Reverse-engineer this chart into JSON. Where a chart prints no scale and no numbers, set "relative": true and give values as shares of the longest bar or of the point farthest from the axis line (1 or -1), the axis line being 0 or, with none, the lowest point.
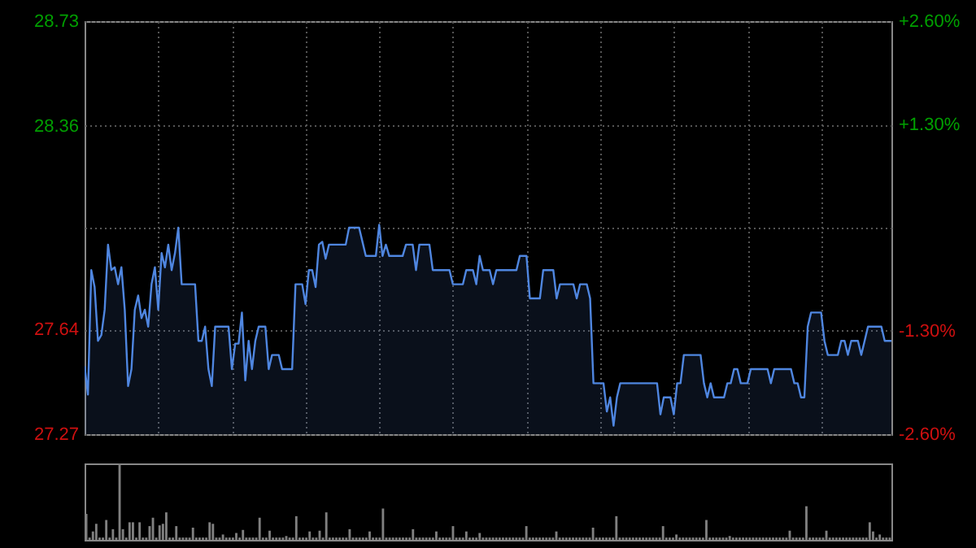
{
  "chart_data": [
    {
      "type": "area",
      "ylim": [
        27.27,
        28.73
      ],
      "categories": [
        null,
        null,
        null,
        null,
        null,
        null,
        null,
        null,
        null,
        null,
        null,
        null,
        null,
        null,
        null,
        null,
        null,
        null,
        null,
        null,
        null,
        null,
        null,
        null,
        null,
        null,
        null,
        null,
        null,
        null,
        null,
        null,
        null,
        null,
        null,
        null,
        null,
        null,
        null,
        null,
        null,
        null,
        null,
        null,
        null,
        null,
        null,
        null,
        null,
        null,
        null,
        null,
        null,
        null,
        null,
        null,
        null,
        null,
        null,
        null,
        null,
        null,
        null,
        null,
        null,
        null,
        null,
        null,
        null,
        null,
        null,
        null,
        null,
        null,
        null,
        null,
        null,
        null,
        null,
        null,
        null,
        null,
        null,
        null,
        null,
        null,
        null,
        null,
        null,
        null,
        null,
        null,
        null,
        null,
        null,
        null,
        null,
        null,
        null,
        null,
        null,
        null,
        null,
        null,
        null,
        null,
        null,
        null,
        null,
        null,
        null,
        null,
        null,
        null,
        null,
        null,
        null,
        null,
        null,
        null,
        null,
        null,
        null,
        null,
        null,
        null,
        null,
        null,
        null,
        null,
        null,
        null,
        null,
        null,
        null,
        null,
        null,
        null,
        null,
        null,
        null,
        null,
        null,
        null,
        null,
        null,
        null,
        null,
        null,
        null,
        null,
        null,
        null,
        null,
        null,
        null,
        null,
        null,
        null,
        null,
        null,
        null,
        null,
        null,
        null,
        null,
        null,
        null,
        null,
        null,
        null,
        null,
        null,
        null,
        null,
        null,
        null,
        null,
        null,
        null,
        null,
        null,
        null,
        null,
        null,
        null,
        null,
        null,
        null,
        null,
        null,
        null,
        null,
        null,
        null,
        null,
        null,
        null,
        null,
        null,
        null,
        null,
        null,
        null,
        null,
        null,
        null,
        null,
        null,
        null,
        null,
        null,
        null,
        null,
        null,
        null,
        null,
        null,
        null,
        null,
        null,
        null,
        null,
        null,
        null,
        null,
        null,
        null,
        null,
        null,
        null,
        null,
        null,
        null,
        null,
        null,
        null,
        null,
        null,
        null,
        null,
        null
      ],
      "yticks": [
        27.27,
        27.64,
        {
          "value": 28.0,
          "label": null
        },
        28.36,
        28.73
      ],
      "y2lim": [
        -2.6,
        2.6
      ],
      "y2ticks": [
        {
          "value": -2.6,
          "label": "-2.60%"
        },
        {
          "value": -1.3,
          "label": "-1.30%"
        },
        {
          "value": 1.3,
          "label": "+1.30%"
        },
        {
          "value": 2.6,
          "label": "+2.60%"
        }
      ],
      "grid": true,
      "series": [
        {
          "color": "#4f86e0",
          "values": [
            27.51,
            27.41,
            27.85,
            27.79,
            27.6,
            27.62,
            27.71,
            27.94,
            27.85,
            27.86,
            27.8,
            27.86,
            27.71,
            27.44,
            27.5,
            27.71,
            27.76,
            27.68,
            27.71,
            27.65,
            27.8,
            27.86,
            27.71,
            27.91,
            27.86,
            27.94,
            27.85,
            27.91,
            28.0,
            27.8,
            27.8,
            27.8,
            27.8,
            27.8,
            27.6,
            27.6,
            27.65,
            27.5,
            27.44,
            27.65,
            27.65,
            27.65,
            27.65,
            27.65,
            27.5,
            27.59,
            27.59,
            27.7,
            27.46,
            27.6,
            27.5,
            27.6,
            27.65,
            27.65,
            27.65,
            27.5,
            27.55,
            27.55,
            27.55,
            27.5,
            27.5,
            27.5,
            27.5,
            27.8,
            27.8,
            27.8,
            27.73,
            27.85,
            27.85,
            27.79,
            27.94,
            27.95,
            27.89,
            27.94,
            27.94,
            27.94,
            27.94,
            27.94,
            27.94,
            28.0,
            28.0,
            28.0,
            28.0,
            27.95,
            27.9,
            27.9,
            27.9,
            27.9,
            28.01,
            27.9,
            27.94,
            27.9,
            27.9,
            27.9,
            27.9,
            27.9,
            27.94,
            27.94,
            27.94,
            27.85,
            27.94,
            27.94,
            27.94,
            27.94,
            27.85,
            27.85,
            27.85,
            27.85,
            27.85,
            27.85,
            27.8,
            27.8,
            27.8,
            27.8,
            27.85,
            27.85,
            27.85,
            27.8,
            27.9,
            27.85,
            27.85,
            27.85,
            27.8,
            27.85,
            27.85,
            27.85,
            27.85,
            27.85,
            27.85,
            27.85,
            27.9,
            27.9,
            27.9,
            27.75,
            27.75,
            27.75,
            27.75,
            27.85,
            27.85,
            27.85,
            27.85,
            27.75,
            27.8,
            27.8,
            27.8,
            27.8,
            27.8,
            27.75,
            27.8,
            27.8,
            27.8,
            27.75,
            27.45,
            27.45,
            27.45,
            27.45,
            27.35,
            27.4,
            27.3,
            27.4,
            27.45,
            27.45,
            27.45,
            27.45,
            27.45,
            27.45,
            27.45,
            27.45,
            27.45,
            27.45,
            27.45,
            27.45,
            27.34,
            27.4,
            27.4,
            27.4,
            27.34,
            27.45,
            27.45,
            27.55,
            27.55,
            27.55,
            27.55,
            27.55,
            27.55,
            27.45,
            27.4,
            27.45,
            27.4,
            27.4,
            27.4,
            27.4,
            27.45,
            27.45,
            27.5,
            27.5,
            27.45,
            27.45,
            27.45,
            27.5,
            27.5,
            27.5,
            27.5,
            27.5,
            27.5,
            27.45,
            27.5,
            27.5,
            27.5,
            27.5,
            27.5,
            27.5,
            27.45,
            27.45,
            27.4,
            27.4,
            27.65,
            27.7,
            27.7,
            27.7,
            27.7,
            27.6,
            27.55,
            27.55,
            27.55,
            27.55,
            27.6,
            27.6,
            27.55,
            27.6,
            27.6,
            27.6,
            27.55,
            27.6,
            27.65,
            27.65,
            27.65,
            27.65,
            27.65,
            27.6,
            27.6,
            27.6
          ]
        }
      ]
    },
    {
      "type": "bar",
      "relative": true,
      "categories": [
        null,
        null,
        null,
        null,
        null,
        null,
        null,
        null,
        null,
        null,
        null,
        null,
        null,
        null,
        null,
        null,
        null,
        null,
        null,
        null,
        null,
        null,
        null,
        null,
        null,
        null,
        null,
        null,
        null,
        null,
        null,
        null,
        null,
        null,
        null,
        null,
        null,
        null,
        null,
        null,
        null,
        null,
        null,
        null,
        null,
        null,
        null,
        null,
        null,
        null,
        null,
        null,
        null,
        null,
        null,
        null,
        null,
        null,
        null,
        null,
        null,
        null,
        null,
        null,
        null,
        null,
        null,
        null,
        null,
        null,
        null,
        null,
        null,
        null,
        null,
        null,
        null,
        null,
        null,
        null,
        null,
        null,
        null,
        null,
        null,
        null,
        null,
        null,
        null,
        null,
        null,
        null,
        null,
        null,
        null,
        null,
        null,
        null,
        null,
        null,
        null,
        null,
        null,
        null,
        null,
        null,
        null,
        null,
        null,
        null,
        null,
        null,
        null,
        null,
        null,
        null,
        null,
        null,
        null,
        null,
        null,
        null,
        null,
        null,
        null,
        null,
        null,
        null,
        null,
        null,
        null,
        null,
        null,
        null,
        null,
        null,
        null,
        null,
        null,
        null,
        null,
        null,
        null,
        null,
        null,
        null,
        null,
        null,
        null,
        null,
        null,
        null,
        null,
        null,
        null,
        null,
        null,
        null,
        null,
        null,
        null,
        null,
        null,
        null,
        null,
        null,
        null,
        null,
        null,
        null,
        null,
        null,
        null,
        null,
        null,
        null,
        null,
        null,
        null,
        null,
        null,
        null,
        null,
        null,
        null,
        null,
        null,
        null,
        null,
        null,
        null,
        null,
        null,
        null,
        null,
        null,
        null,
        null,
        null,
        null,
        null,
        null,
        null,
        null,
        null,
        null,
        null,
        null,
        null,
        null,
        null,
        null,
        null,
        null,
        null,
        null,
        null,
        null,
        null,
        null,
        null,
        null,
        null,
        null,
        null,
        null,
        null,
        null,
        null,
        null,
        null,
        null,
        null,
        null,
        null,
        null,
        null,
        null,
        null,
        null,
        null,
        null
      ],
      "series": [
        {
          "color": "#808080",
          "values": [
            0.34,
            0.03,
            0.11,
            0.21,
            0.03,
            0.03,
            0.26,
            0.03,
            0.14,
            0.03,
            1,
            0.14,
            0.03,
            0.23,
            0.23,
            0.03,
            0.23,
            0.03,
            0.03,
            0.18,
            0.29,
            0.03,
            0.19,
            0.21,
            0.36,
            0.03,
            0.03,
            0.18,
            0.03,
            0.03,
            0.03,
            0.03,
            0.16,
            0.03,
            0.03,
            0.03,
            0.03,
            0.23,
            0.21,
            0.03,
            0.03,
            0.07,
            0.03,
            0.03,
            0.03,
            0.09,
            0.03,
            0.13,
            0.03,
            0.03,
            0.03,
            0.03,
            0.29,
            0.03,
            0.03,
            0.12,
            0.03,
            0.03,
            0.03,
            0.03,
            0.05,
            0.03,
            0.03,
            0.31,
            0.03,
            0.03,
            0.03,
            0.11,
            0.03,
            0.03,
            0.12,
            0.03,
            0.36,
            0.03,
            0.03,
            0.03,
            0.03,
            0.03,
            0.03,
            0.14,
            0.03,
            0.03,
            0.03,
            0.03,
            0.03,
            0.11,
            0.03,
            0.03,
            0.03,
            0.41,
            0.03,
            0.03,
            0.03,
            0.03,
            0.03,
            0.03,
            0.03,
            0.03,
            0.14,
            0.03,
            0.03,
            0.03,
            0.03,
            0.03,
            0.03,
            0.11,
            0.03,
            0.03,
            0.03,
            0.03,
            0.18,
            0.03,
            0.03,
            0.03,
            0.11,
            0.03,
            0.03,
            0.03,
            0.09,
            0.03,
            0.03,
            0.03,
            0.03,
            0.03,
            0.03,
            0.03,
            0.03,
            0.03,
            0.03,
            0.03,
            0.03,
            0.03,
            0.18,
            0.03,
            0.03,
            0.03,
            0.03,
            0.03,
            0.03,
            0.03,
            0.03,
            0.11,
            0.03,
            0.03,
            0.03,
            0.03,
            0.03,
            0.03,
            0.03,
            0.03,
            0.03,
            0.03,
            0.16,
            0.03,
            0.03,
            0.03,
            0.03,
            0.03,
            0.03,
            0.31,
            0.03,
            0.03,
            0.03,
            0.03,
            0.03,
            0.03,
            0.03,
            0.03,
            0.03,
            0.03,
            0.03,
            0.03,
            0.03,
            0.18,
            0.03,
            0.03,
            0.03,
            0.07,
            0.03,
            0.03,
            0.03,
            0.03,
            0.03,
            0.03,
            0.03,
            0.03,
            0.26,
            0.03,
            0.03,
            0.03,
            0.03,
            0.03,
            0.03,
            0.05,
            0.03,
            0.03,
            0.03,
            0.03,
            0.03,
            0.03,
            0.03,
            0.03,
            0.03,
            0.03,
            0.03,
            0.03,
            0.03,
            0.03,
            0.03,
            0.03,
            0.03,
            0.12,
            0.03,
            0.03,
            0.03,
            0.03,
            0.44,
            0.03,
            0.03,
            0.03,
            0.03,
            0.03,
            0.12,
            0.03,
            0.03,
            0.03,
            0.03,
            0.03,
            0.03,
            0.03,
            0.03,
            0.03,
            0.03,
            0.03,
            0.03,
            0.23,
            0.11,
            0.03,
            0.07,
            0.03,
            0.03,
            0.03
          ]
        }
      ]
    }
  ]
}
